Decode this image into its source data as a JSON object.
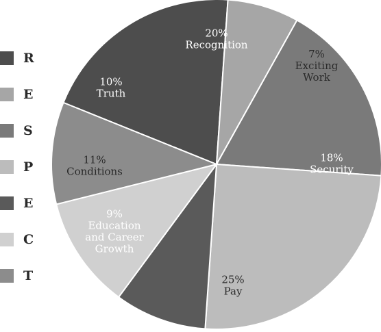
{
  "chart_data": {
    "type": "pie",
    "slices": [
      {
        "key": "recognition",
        "pct": "20%",
        "lines": [
          "Recognition"
        ],
        "value": 20,
        "color": "#4d4d4d",
        "text_color": "#ffffff"
      },
      {
        "key": "exciting-work",
        "pct": "7%",
        "lines": [
          "Exciting",
          "Work"
        ],
        "value": 7,
        "color": "#a6a6a6",
        "text_color": "#2a2a2a"
      },
      {
        "key": "security",
        "pct": "18%",
        "lines": [
          "Security"
        ],
        "value": 18,
        "color": "#7a7a7a",
        "text_color": "#ffffff"
      },
      {
        "key": "pay",
        "pct": "25%",
        "lines": [
          "Pay"
        ],
        "value": 25,
        "color": "#bcbcbc",
        "text_color": "#2a2a2a"
      },
      {
        "key": "education-and-career-growth",
        "pct": "9%",
        "lines": [
          "Education",
          "and Career",
          "Growth"
        ],
        "value": 9,
        "color": "#5a5a5a",
        "text_color": "#ffffff"
      },
      {
        "key": "conditions",
        "pct": "11%",
        "lines": [
          "Conditions"
        ],
        "value": 11,
        "color": "#d0d0d0",
        "text_color": "#2a2a2a"
      },
      {
        "key": "truth",
        "pct": "10%",
        "lines": [
          "Truth"
        ],
        "value": 10,
        "color": "#8c8c8c",
        "text_color": "#ffffff"
      }
    ],
    "legend": [
      {
        "letter": "R",
        "color": "#4d4d4d"
      },
      {
        "letter": "E",
        "color": "#a6a6a6"
      },
      {
        "letter": "S",
        "color": "#7a7a7a"
      },
      {
        "letter": "P",
        "color": "#bcbcbc"
      },
      {
        "letter": "E",
        "color": "#5a5a5a"
      },
      {
        "letter": "C",
        "color": "#d0d0d0"
      },
      {
        "letter": "T",
        "color": "#8c8c8c"
      }
    ],
    "legend_placement": "left",
    "title": "",
    "xlabel": "",
    "ylabel": ""
  }
}
